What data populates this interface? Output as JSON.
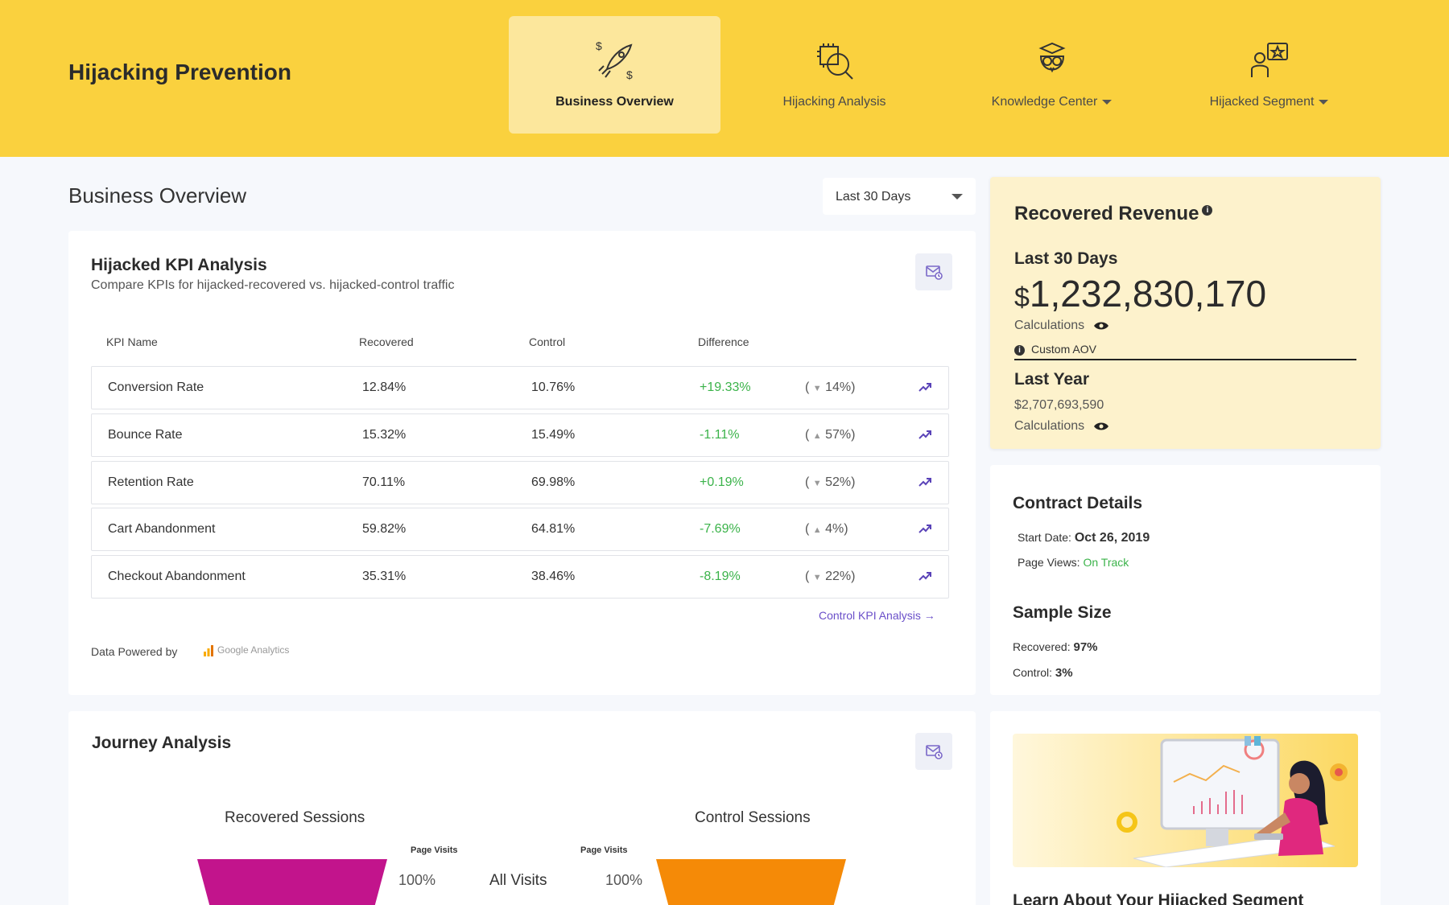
{
  "app": {
    "title": "Hijacking Prevention"
  },
  "nav": [
    {
      "label": "Business Overview",
      "icon": "rocket-icon",
      "active": true
    },
    {
      "label": "Hijacking Analysis",
      "icon": "chip-search-icon",
      "active": false
    },
    {
      "label": "Knowledge Center",
      "icon": "owl-icon",
      "active": false,
      "dropdown": true
    },
    {
      "label": "Hijacked Segment",
      "icon": "user-star-icon",
      "active": false,
      "dropdown": true
    }
  ],
  "page": {
    "title": "Business Overview",
    "date_range": "Last 30 Days"
  },
  "kpi": {
    "title": "Hijacked KPI Analysis",
    "subtitle": "Compare KPIs for hijacked-recovered vs. hijacked-control traffic",
    "columns": {
      "name": "KPI Name",
      "recovered": "Recovered",
      "control": "Control",
      "difference": "Difference"
    },
    "rows": [
      {
        "name": "Conversion Rate",
        "recovered": "12.84%",
        "control": "10.76%",
        "difference": "+19.33%",
        "change": "14%)",
        "dir": "down"
      },
      {
        "name": "Bounce Rate",
        "recovered": "15.32%",
        "control": "15.49%",
        "difference": "-1.11%",
        "change": "57%)",
        "dir": "up"
      },
      {
        "name": "Retention Rate",
        "recovered": "70.11%",
        "control": "69.98%",
        "difference": "+0.19%",
        "change": "52%)",
        "dir": "down"
      },
      {
        "name": "Cart Abandonment",
        "recovered": "59.82%",
        "control": "64.81%",
        "difference": "-7.69%",
        "change": "4%)",
        "dir": "up"
      },
      {
        "name": "Checkout Abandonment",
        "recovered": "35.31%",
        "control": "38.46%",
        "difference": "-8.19%",
        "change": "22%)",
        "dir": "down"
      }
    ],
    "link": "Control KPI Analysis",
    "powered_by": "Data Powered by",
    "provider": "Google Analytics"
  },
  "revenue": {
    "title": "Recovered Revenue",
    "period_label": "Last 30 Days",
    "currency": "$",
    "amount": "1,232,830,170",
    "calc_label": "Calculations",
    "aov_label": "Custom AOV",
    "last_year_label": "Last Year",
    "last_year_amount": "$2,707,693,590",
    "calc_label_2": "Calculations"
  },
  "contract": {
    "title": "Contract Details",
    "start_label": "Start Date:",
    "start_value": "Oct 26, 2019",
    "views_label": "Page Views:",
    "views_value": "On Track",
    "sample_title": "Sample Size",
    "recovered_label": "Recovered:",
    "recovered_value": "97%",
    "control_label": "Control:",
    "control_value": "3%"
  },
  "journey": {
    "title": "Journey Analysis",
    "recovered_title": "Recovered Sessions",
    "control_title": "Control Sessions",
    "page_visits_label": "Page Visits",
    "all_visits_label": "All Visits",
    "recovered_pct": "100%",
    "control_pct": "100%",
    "recovered_color": "#c2148c",
    "control_color": "#f58a07"
  },
  "learn": {
    "title": "Learn About Your Hijacked Segment"
  },
  "colors": {
    "brand": "#fad13e",
    "positive": "#3bb34a",
    "link": "#6a4fc9"
  }
}
